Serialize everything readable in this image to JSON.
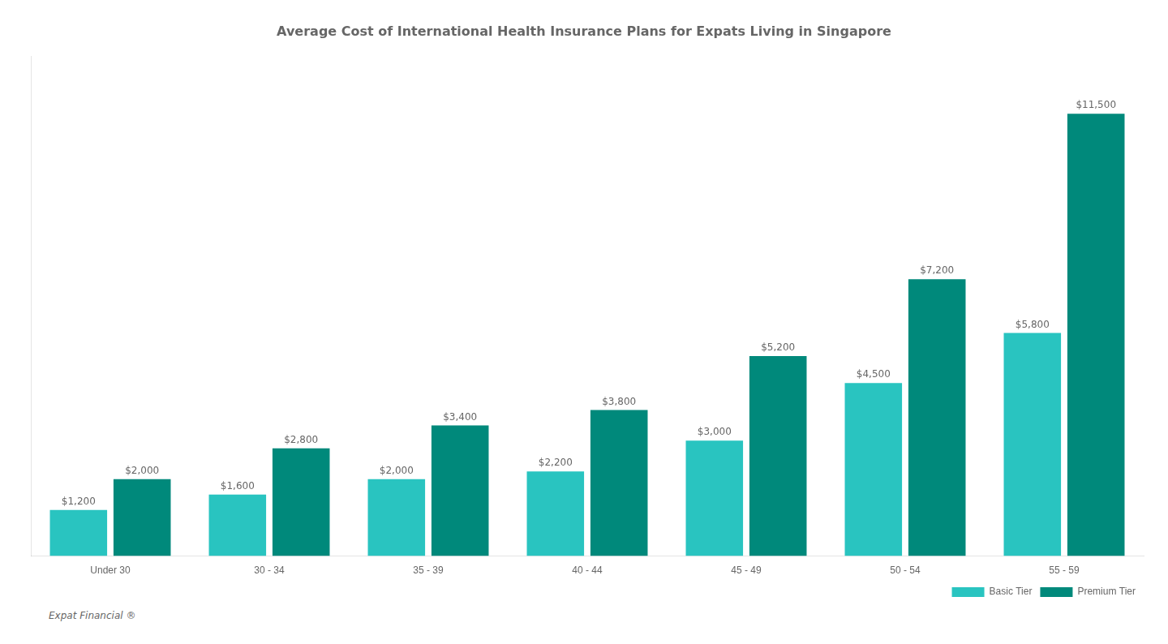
{
  "chart_data": {
    "type": "bar",
    "title": "Average Cost of International Health Insurance Plans for Expats Living in Singapore",
    "categories": [
      "Under 30",
      "30 - 34",
      "35 - 39",
      "40 - 44",
      "45 - 49",
      "50 - 54",
      "55 - 59"
    ],
    "series": [
      {
        "name": "Basic Tier",
        "color": "#29C4C0",
        "values": [
          1200,
          1600,
          2000,
          2200,
          3000,
          4500,
          5800
        ],
        "value_labels": [
          "$1,200",
          "$1,600",
          "$2,000",
          "$2,200",
          "$3,000",
          "$4,500",
          "$5,800"
        ]
      },
      {
        "name": "Premium Tier",
        "color": "#00897B",
        "values": [
          2000,
          2800,
          3400,
          3800,
          5200,
          7200,
          11500
        ],
        "value_labels": [
          "$2,000",
          "$2,800",
          "$3,400",
          "$3,800",
          "$5,200",
          "$7,200",
          "$11,500"
        ]
      }
    ],
    "ylim": [
      0,
      13000
    ],
    "grid": false,
    "legend": "lower right",
    "data_labels": true,
    "tick_labels": "x",
    "annotations": [
      "Expat Financial ®"
    ]
  }
}
